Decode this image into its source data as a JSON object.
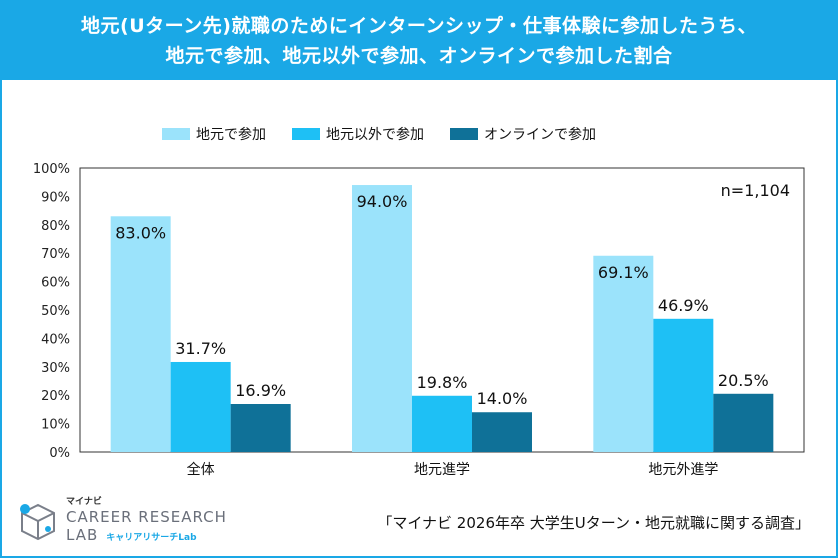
{
  "header": {
    "line1": "地元(Uターン先)就職のためにインターンシップ・仕事体験に参加したうち、",
    "line2": "地元で参加、地元以外で参加、オンラインで参加した割合"
  },
  "colors": {
    "header_bg": "#1aa8e6",
    "series1": "#9be3fb",
    "series2": "#1ec0f5",
    "series3": "#0f7198"
  },
  "chart_data": {
    "type": "bar",
    "categories": [
      "全体",
      "地元進学",
      "地元外進学"
    ],
    "series": [
      {
        "name": "地元で参加",
        "values": [
          83.0,
          94.0,
          69.1
        ],
        "labels": [
          "83.0%",
          "94.0%",
          "69.1%"
        ]
      },
      {
        "name": "地元以外で参加",
        "values": [
          31.7,
          19.8,
          46.9
        ],
        "labels": [
          "31.7%",
          "19.8%",
          "46.9%"
        ]
      },
      {
        "name": "オンラインで参加",
        "values": [
          16.9,
          14.0,
          20.5
        ],
        "labels": [
          "16.9%",
          "14.0%",
          "20.5%"
        ]
      }
    ],
    "ylim": [
      0,
      100
    ],
    "yticks": [
      "0%",
      "10%",
      "20%",
      "30%",
      "40%",
      "50%",
      "60%",
      "70%",
      "80%",
      "90%",
      "100%"
    ],
    "annotation": "n=1,104",
    "legend_position": "top"
  },
  "footer": {
    "source": "「マイナビ 2026年卒 大学生Uターン・地元就職に関する調査」",
    "logo_brand": "マイナビ",
    "logo_line1": "CAREER RESEARCH",
    "logo_line2": "LAB",
    "logo_line2_sub": "キャリアリサーチLab"
  }
}
